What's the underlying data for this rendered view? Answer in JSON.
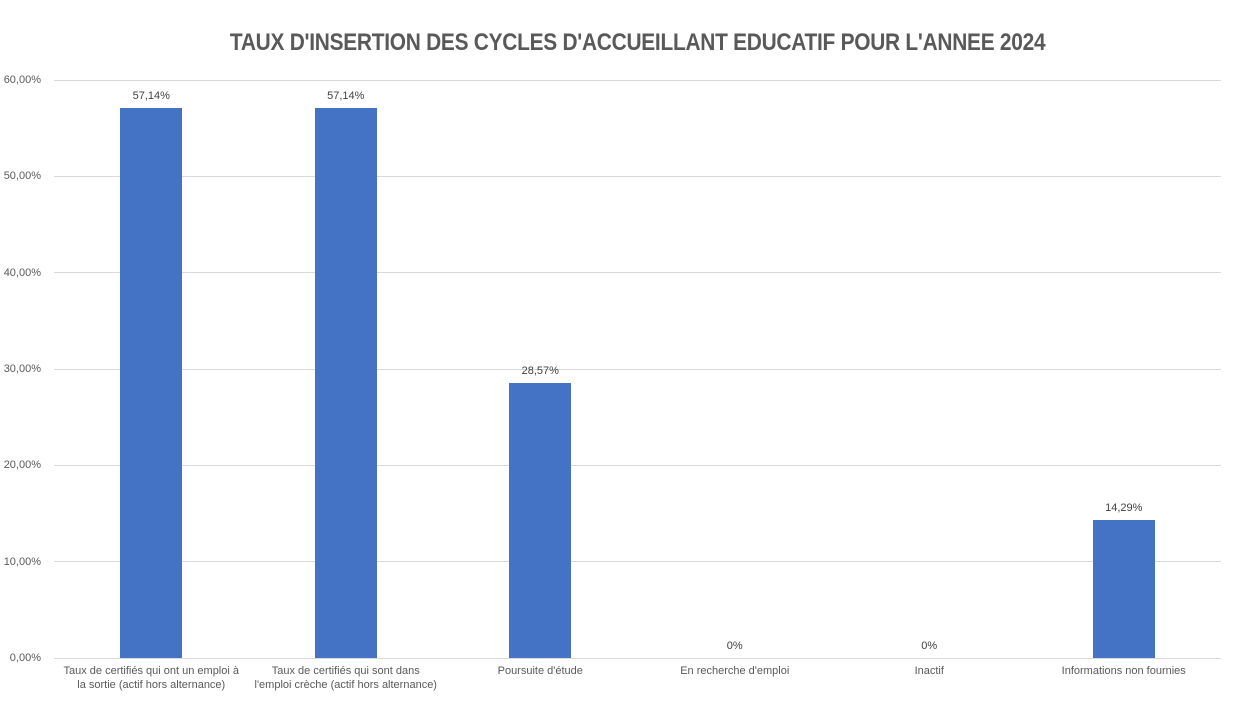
{
  "chart_data": {
    "type": "bar",
    "title": "TAUX D'INSERTION DES CYCLES D'ACCUEILLANT EDUCATIF POUR L'ANNEE 2024",
    "categories": [
      "Taux de certifiés qui ont un emploi à la sortie (actif hors alternance)",
      "Taux de certifiés qui sont dans l'emploi crèche (actif hors alternance)",
      "Poursuite d'étude",
      "En recherche d'emploi",
      "Inactif",
      "Informations non fournies"
    ],
    "values": [
      57.14,
      57.14,
      28.57,
      0,
      0,
      14.29
    ],
    "value_labels": [
      "57,14%",
      "57,14%",
      "28,57%",
      "0%",
      "0%",
      "14,29%"
    ],
    "xlabel": "",
    "ylabel": "",
    "ylim": [
      0,
      60
    ],
    "yticks": [
      {
        "value": 0,
        "label": "0,00%"
      },
      {
        "value": 10,
        "label": "10,00%"
      },
      {
        "value": 20,
        "label": "20,00%"
      },
      {
        "value": 30,
        "label": "30,00%"
      },
      {
        "value": 40,
        "label": "40,00%"
      },
      {
        "value": 50,
        "label": "50,00%"
      },
      {
        "value": 60,
        "label": "60,00%"
      }
    ],
    "grid": true,
    "legend": null,
    "colors": {
      "bar": "#4472C4",
      "title": "#595959",
      "axis_text": "#595959",
      "value_label": "#404040",
      "gridline": "#D9D9D9"
    }
  }
}
